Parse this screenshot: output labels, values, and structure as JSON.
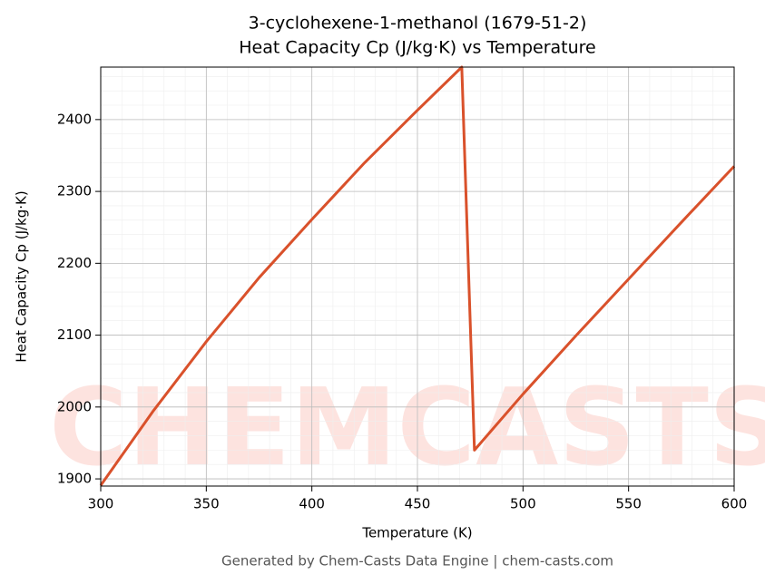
{
  "chart_data": {
    "type": "line",
    "title": "3-cyclohexene-1-methanol (1679-51-2)",
    "subtitle": "Heat Capacity Cp (J/kg·K) vs Temperature",
    "x_label": "Temperature (K)",
    "y_label": "Heat Capacity Cp (J/kg·K)",
    "footer": "Generated by Chem-Casts Data Engine | chem-casts.com",
    "watermark": "CHEMCASTS",
    "x": [
      300,
      325,
      350,
      375,
      400,
      425,
      450,
      471,
      477,
      500,
      525,
      550,
      575,
      600
    ],
    "series": [
      {
        "name": "Cp",
        "color": "#d9512b",
        "values": [
          1891,
          1995,
          2091,
          2180,
          2261,
          2340,
          2413,
          2473,
          1940,
          2018,
          2099,
          2178,
          2257,
          2335
        ]
      }
    ],
    "xlim": [
      300,
      600
    ],
    "ylim": [
      1890,
      2473
    ],
    "xticks": [
      300,
      350,
      400,
      450,
      500,
      550,
      600
    ],
    "yticks": [
      1900,
      2000,
      2100,
      2200,
      2300,
      2400
    ],
    "grid": true
  }
}
